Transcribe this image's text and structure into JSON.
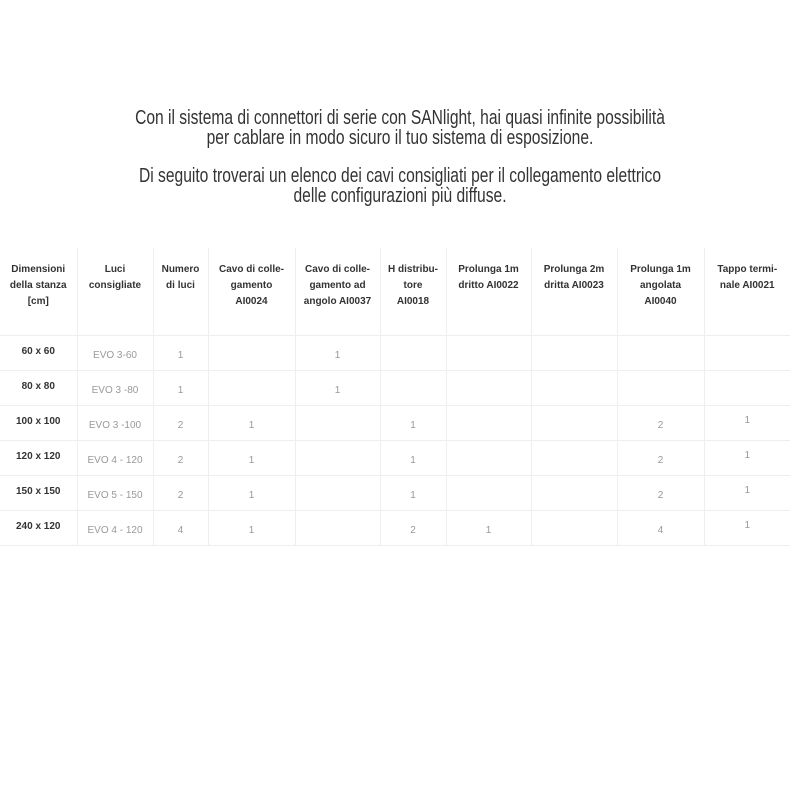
{
  "intro": {
    "paragraph1": "Con il sistema di connettori di serie con SANlight, hai quasi infinite possibilità\nper cablare in modo sicuro il tuo sistema di esposizione.",
    "paragraph2": "Di seguito troverai un elenco dei cavi consigliati per il collegamento elettrico\ndelle configurazioni più diffuse."
  },
  "table": {
    "headers": [
      "Dimensioni\ndella stanza\n[cm]",
      "Luci\nconsigliate",
      "Numero\ndi luci",
      "Cavo di colle-\ngamento\nAI0024",
      "Cavo di colle-\ngamento ad\nangolo AI0037",
      "H distribu-\ntore\nAI0018",
      "Prolunga 1m\ndritto AI0022",
      "Prolunga 2m\ndritta AI0023",
      "Prolunga 1m\nangolata\nAI0040",
      "Tappo termi-\nnale AI0021"
    ],
    "rows": [
      [
        "60 x 60",
        "EVO 3-60",
        "1",
        "",
        "1",
        "",
        "",
        "",
        "",
        ""
      ],
      [
        "80 x 80",
        "EVO 3 -80",
        "1",
        "",
        "1",
        "",
        "",
        "",
        "",
        ""
      ],
      [
        "100 x 100",
        "EVO 3 -100",
        "2",
        "1",
        "",
        "1",
        "",
        "",
        "2",
        "1"
      ],
      [
        "120 x 120",
        "EVO 4 - 120",
        "2",
        "1",
        "",
        "1",
        "",
        "",
        "2",
        "1"
      ],
      [
        "150 x 150",
        "EVO 5 - 150",
        "2",
        "1",
        "",
        "1",
        "",
        "",
        "2",
        "1"
      ],
      [
        "240 x 120",
        "EVO 4 - 120",
        "4",
        "1",
        "",
        "2",
        "1",
        "",
        "4",
        "1"
      ]
    ]
  }
}
